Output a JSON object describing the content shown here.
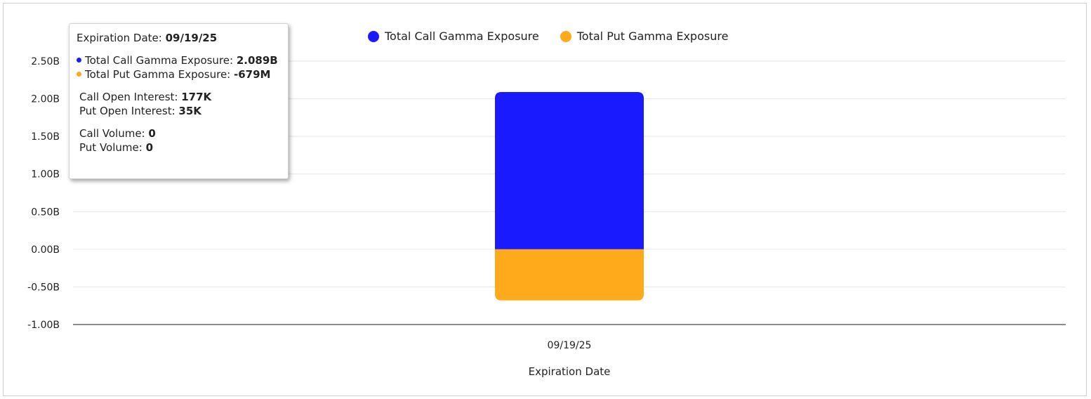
{
  "chart_data": {
    "type": "bar",
    "stacked": true,
    "categories": [
      "09/19/25"
    ],
    "series": [
      {
        "name": "Total Call Gamma Exposure",
        "values": [
          2.089
        ],
        "color": "#1a1aff"
      },
      {
        "name": "Total Put Gamma Exposure",
        "values": [
          -0.679
        ],
        "color": "#ffaa1a"
      }
    ],
    "yticks": [
      "2.50B",
      "2.00B",
      "1.50B",
      "1.00B",
      "0.50B",
      "0.00B",
      "-0.50B",
      "-1.00B"
    ],
    "ylim": [
      -1.0,
      2.5
    ],
    "ylabel": "",
    "xlabel": "Expiration Date",
    "grid": true,
    "legend_position": "top-center"
  },
  "legend": {
    "call_label": "Total Call Gamma Exposure",
    "put_label": "Total Put Gamma Exposure",
    "call_color": "#1a1aff",
    "put_color": "#ffaa1a"
  },
  "tooltip": {
    "date_label": "Expiration Date:",
    "date_value": "09/19/25",
    "call_gex_label": "Total Call Gamma Exposure:",
    "call_gex_value": "2.089B",
    "put_gex_label": "Total Put Gamma Exposure:",
    "put_gex_value": "-679M",
    "call_oi_label": "Call Open Interest:",
    "call_oi_value": "177K",
    "put_oi_label": "Put Open Interest:",
    "put_oi_value": "35K",
    "call_vol_label": "Call Volume:",
    "call_vol_value": "0",
    "put_vol_label": "Put Volume:",
    "put_vol_value": "0"
  }
}
